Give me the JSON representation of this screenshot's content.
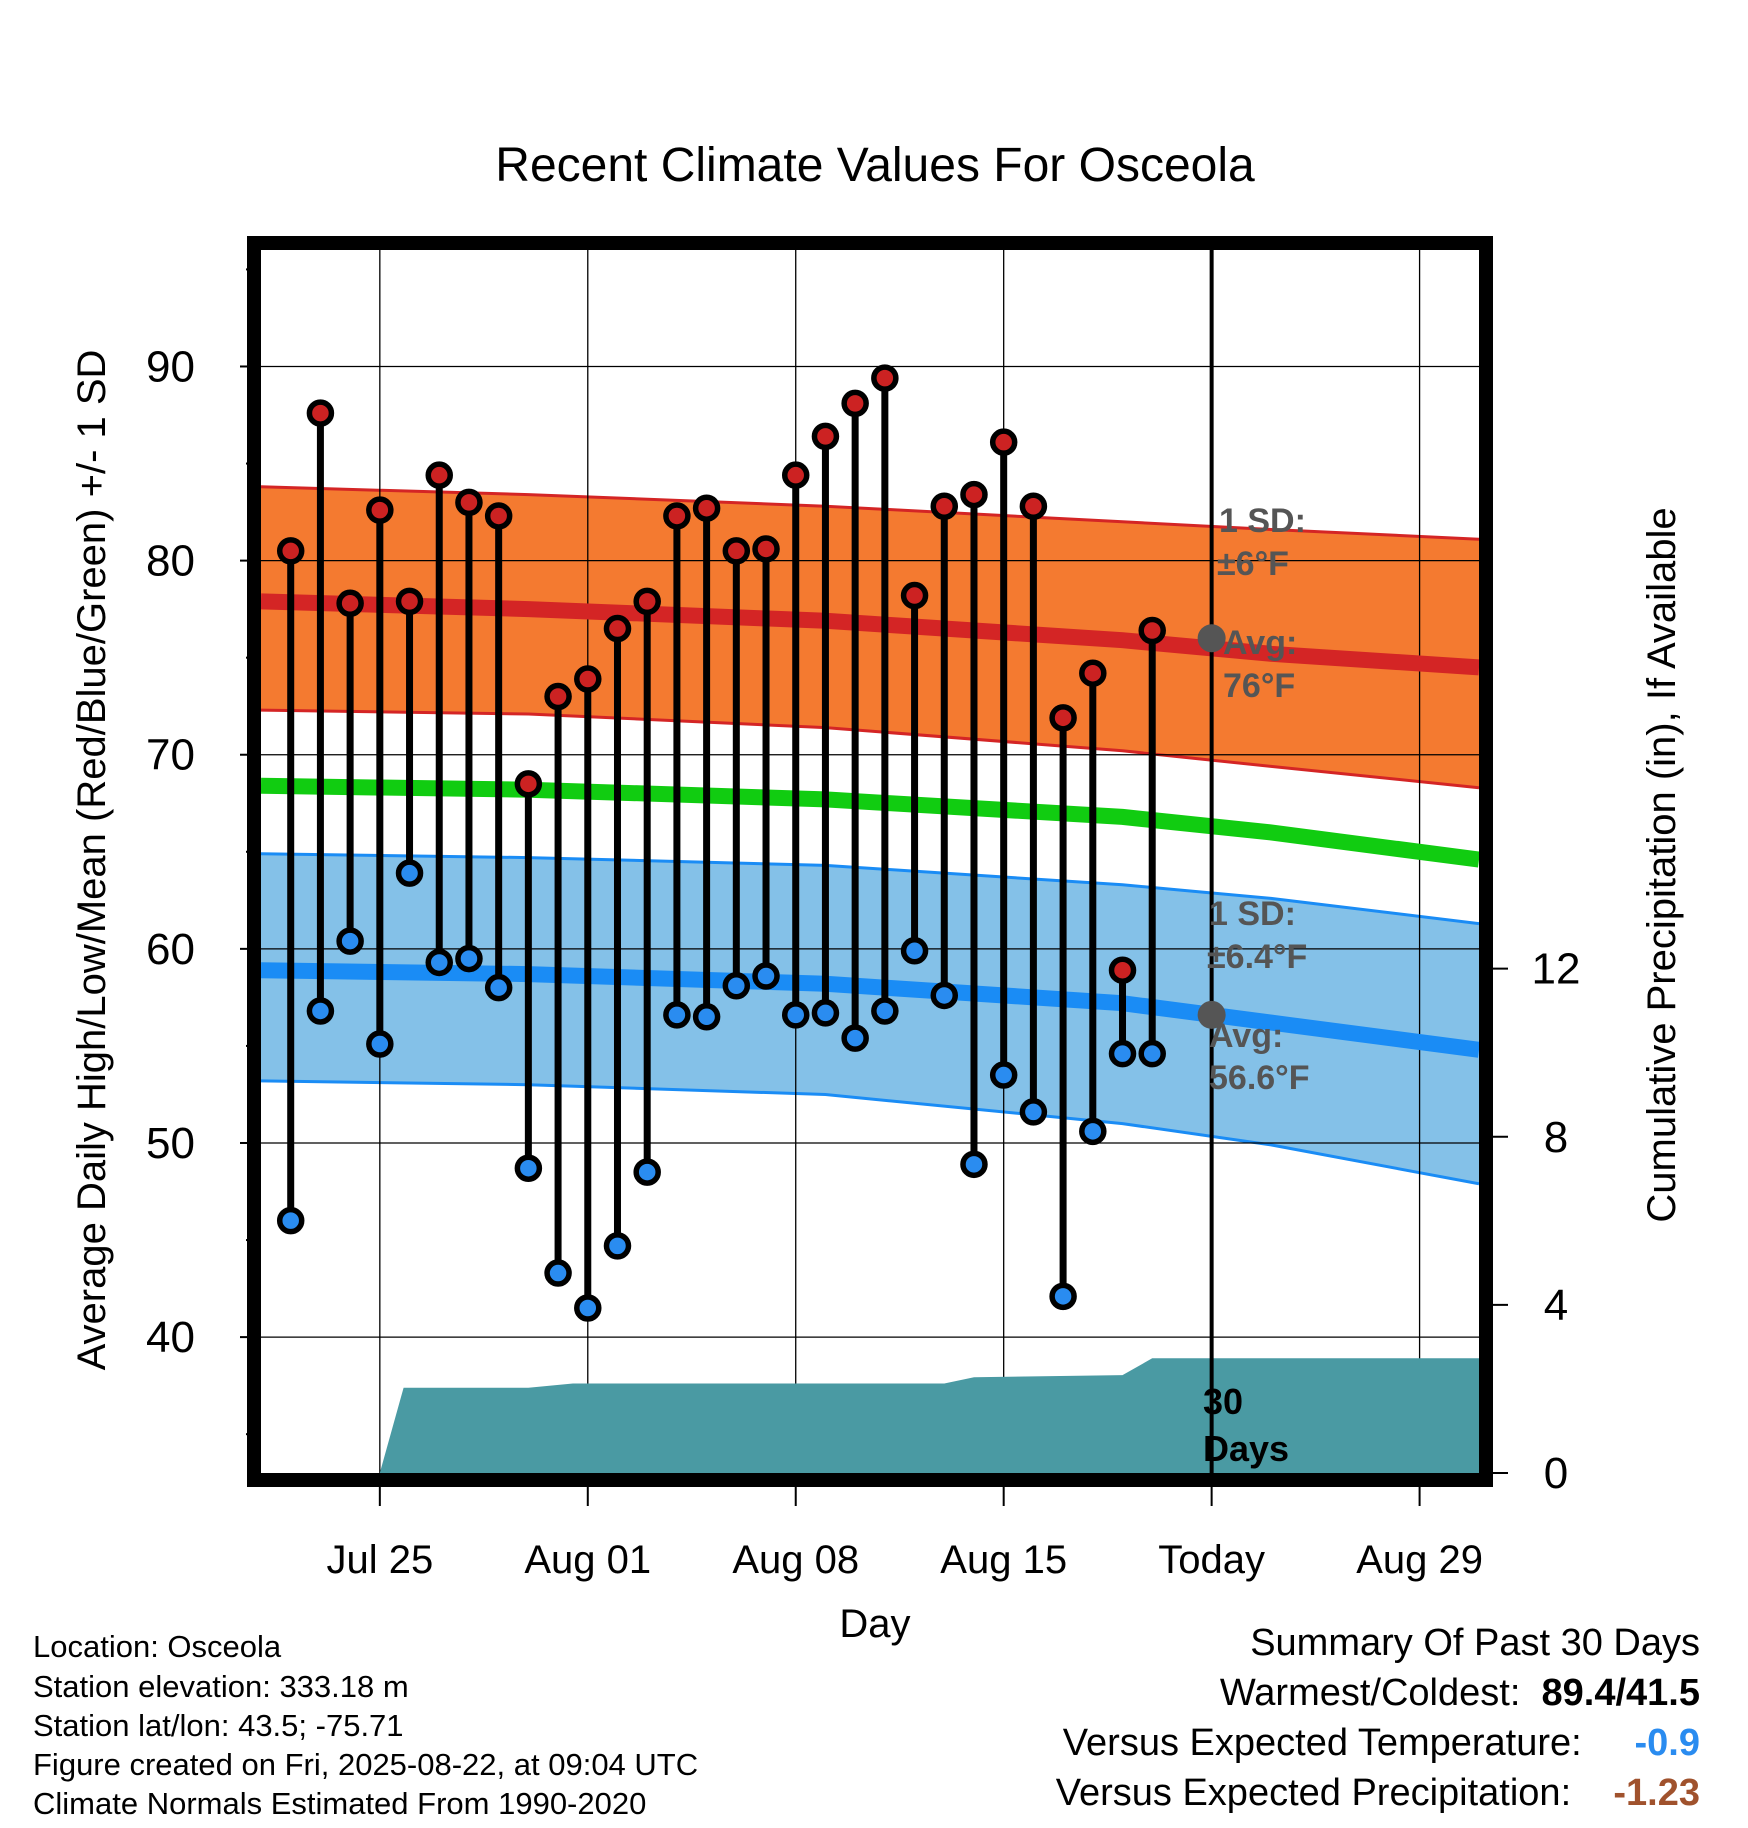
{
  "chart_data": {
    "type": "line",
    "title": "Recent Climate Values For Osceola",
    "xlabel": "Day",
    "ylabel_left": "Average Daily High/Low/Mean (Red/Blue/Green) +/- 1 SD",
    "ylabel_right": "Cumulative Precipitation (in), If Available",
    "x_ticks": [
      "Jul 25",
      "Aug 01",
      "Aug 08",
      "Aug 15",
      "Today",
      "Aug 29"
    ],
    "x_tick_days": [
      5,
      12,
      19,
      26,
      33,
      40
    ],
    "x_range": [
      1,
      42
    ],
    "ylim_left": [
      33,
      96
    ],
    "yticks_left": [
      40,
      50,
      60,
      70,
      80,
      90
    ],
    "ylim_right": [
      0,
      29.1
    ],
    "yticks_right": [
      0,
      4,
      8,
      12
    ],
    "grid": true,
    "today_day": 33,
    "today_label": "30 Days",
    "days": [
      2,
      3,
      4,
      5,
      6,
      7,
      8,
      9,
      10,
      11,
      12,
      13,
      14,
      15,
      16,
      17,
      18,
      19,
      20,
      21,
      22,
      23,
      24,
      25,
      26,
      27,
      28,
      29,
      30,
      31,
      32
    ],
    "series": [
      {
        "name": "High",
        "color": "#cc2222",
        "values": [
          80.5,
          87.6,
          77.8,
          82.6,
          77.9,
          84.4,
          83.0,
          82.3,
          68.5,
          73.0,
          73.9,
          76.5,
          77.9,
          82.3,
          82.7,
          80.5,
          80.6,
          84.4,
          86.4,
          88.1,
          89.4,
          78.2,
          82.8,
          83.4,
          86.1,
          82.8,
          71.9,
          74.2,
          58.9,
          76.4,
          null
        ]
      },
      {
        "name": "Low",
        "color": "#2a8cf0",
        "values": [
          46.0,
          56.8,
          60.4,
          55.1,
          63.9,
          59.3,
          59.5,
          58.0,
          48.7,
          43.3,
          41.5,
          44.7,
          48.5,
          56.6,
          56.5,
          58.1,
          58.6,
          56.6,
          56.7,
          55.4,
          56.8,
          59.9,
          57.6,
          48.9,
          53.5,
          51.6,
          42.1,
          50.6,
          54.6,
          54.6,
          null
        ]
      }
    ],
    "normals": {
      "days": [
        1,
        10,
        20,
        30,
        35,
        42
      ],
      "high_mean": [
        77.9,
        77.5,
        76.9,
        75.9,
        75.2,
        74.5
      ],
      "high_sd_upper": [
        83.8,
        83.4,
        82.8,
        82.0,
        81.6,
        81.1
      ],
      "high_sd_lower": [
        72.3,
        72.1,
        71.4,
        70.2,
        69.4,
        68.3
      ],
      "mean": [
        68.4,
        68.2,
        67.7,
        66.8,
        66.0,
        64.6
      ],
      "low_mean": [
        58.9,
        58.7,
        58.2,
        57.2,
        56.2,
        54.8
      ],
      "low_sd_upper": [
        64.9,
        64.7,
        64.3,
        63.3,
        62.6,
        61.3
      ],
      "low_sd_lower": [
        53.2,
        53.0,
        52.5,
        51.0,
        49.9,
        47.9
      ]
    },
    "precip": {
      "days": [
        5,
        5.8,
        9,
        10,
        11.5,
        20,
        24,
        25,
        30,
        31,
        42
      ],
      "values": [
        0,
        2.03,
        2.03,
        2.03,
        2.13,
        2.13,
        2.13,
        2.28,
        2.33,
        2.73,
        2.73
      ],
      "color": "#4a9aa3"
    },
    "annotations": {
      "high_sd": "1 SD:",
      "high_sd_val": "±6°F",
      "high_avg": "Avg:",
      "high_avg_val": "76°F",
      "low_sd": "1 SD:",
      "low_sd_val": "±6.4°F",
      "low_avg": "Avg:",
      "low_avg_val": "56.6°F",
      "today_high_avg_value": 76.0,
      "today_low_avg_value": 56.6
    },
    "colors": {
      "high_band": "#f47a30",
      "high_line": "#d42525",
      "mean_line": "#11cc11",
      "low_band": "#84c1e8",
      "low_line": "#1a8cf5",
      "precip": "#4a9aa3"
    }
  },
  "info": {
    "location": "Location: Osceola",
    "elevation": "Station elevation: 333.18 m",
    "latlon": "Station lat/lon: 43.5; -75.71",
    "created": "Figure created on Fri, 2025-08-22, at 09:04 UTC",
    "normals": "Climate Normals Estimated From 1990-2020"
  },
  "summary": {
    "title": "Summary Of Past 30 Days",
    "warmest_label": "Warmest/Coldest:",
    "warmest_value": "89.4/41.5",
    "temp_label": "Versus Expected Temperature:",
    "temp_value": "-0.9",
    "temp_color": "#2a8cf0",
    "precip_label": "Versus Expected Precipitation:",
    "precip_value": "-1.23",
    "precip_color": "#a0522d"
  }
}
